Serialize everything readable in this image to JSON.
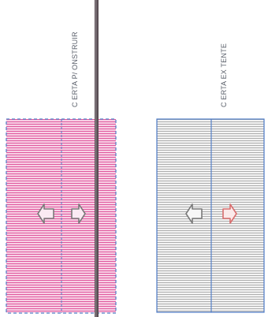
{
  "labels": {
    "left": "C   ERTA P/ ONSTRUIR",
    "right": "C   ERTA EX  TENTE"
  },
  "colors": {
    "left_fill": "#f7cfe4",
    "left_hatch": "#e0589e",
    "left_frame": "#4f7ec8",
    "right_fill": "#f3f3f3",
    "right_hatch": "#a6a6a6",
    "right_frame": "#4a78c6",
    "vertical_bar": "#5a4f55",
    "arrow_stroke": "#7a7a7a",
    "arrow_red": "#d86e6e"
  },
  "icons": {
    "left_panel": [
      "arrow-left-icon",
      "arrow-right-icon"
    ],
    "right_panel": [
      "arrow-left-icon",
      "arrow-right-icon"
    ]
  }
}
